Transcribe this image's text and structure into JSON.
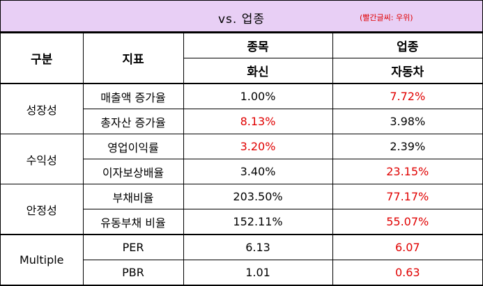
{
  "header": {
    "title": "vs. 업종",
    "note": "(빨간글씨: 우위)"
  },
  "table": {
    "columns": {
      "group": "구분",
      "metric": "지표",
      "stock": "종목",
      "sector": "업종",
      "stock_name": "화신",
      "sector_name": "자동차"
    },
    "highlight_color": "#e00000",
    "groups": [
      {
        "label": "성장성",
        "rows": [
          {
            "metric": "매출액 증가율",
            "stock": "1.00%",
            "sector": "7.72%",
            "highlight": "sector"
          },
          {
            "metric": "총자산 증가율",
            "stock": "8.13%",
            "sector": "3.98%",
            "highlight": "stock"
          }
        ]
      },
      {
        "label": "수익성",
        "rows": [
          {
            "metric": "영업이익률",
            "stock": "3.20%",
            "sector": "2.39%",
            "highlight": "stock"
          },
          {
            "metric": "이자보상배율",
            "stock": "3.40%",
            "sector": "23.15%",
            "highlight": "sector"
          }
        ]
      },
      {
        "label": "안정성",
        "rows": [
          {
            "metric": "부채비율",
            "stock": "203.50%",
            "sector": "77.17%",
            "highlight": "sector"
          },
          {
            "metric": "유동부채 비율",
            "stock": "152.11%",
            "sector": "55.07%",
            "highlight": "sector"
          }
        ]
      },
      {
        "label": "Multiple",
        "rows": [
          {
            "metric": "PER",
            "stock": "6.13",
            "sector": "6.07",
            "highlight": "sector"
          },
          {
            "metric": "PBR",
            "stock": "1.01",
            "sector": "0.63",
            "highlight": "sector"
          }
        ]
      }
    ]
  }
}
